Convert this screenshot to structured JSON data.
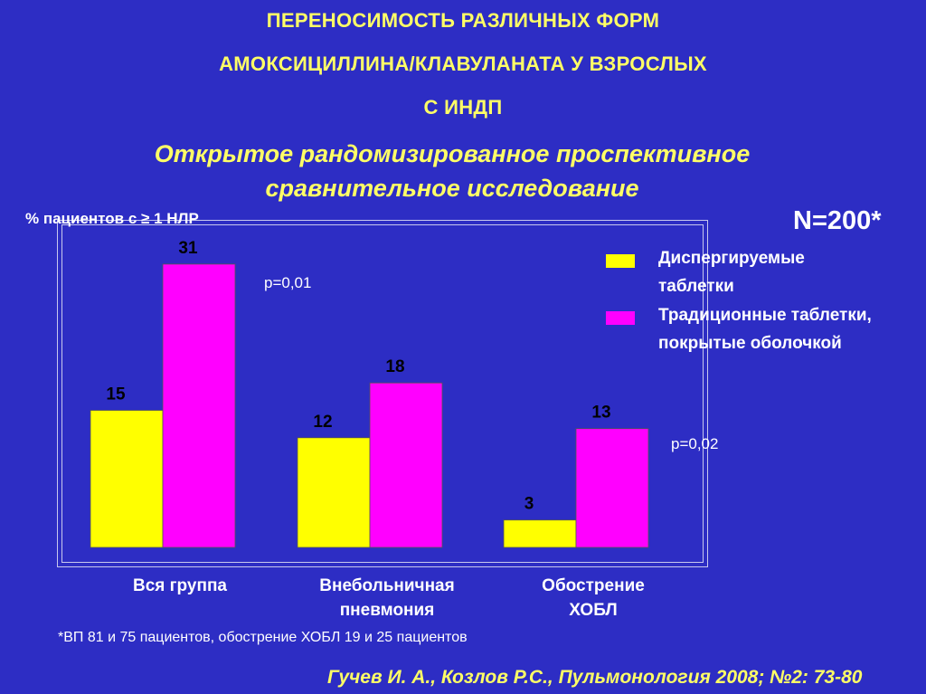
{
  "title_lines": [
    "ПЕРЕНОСИМОСТЬ РАЗЛИЧНЫХ ФОРМ",
    "АМОКСИЦИЛЛИНА/КЛАВУЛАНАТА У ВЗРОСЛЫХ",
    "С ИНДП"
  ],
  "subtitle_lines": [
    "Открытое рандомизированное проспективное",
    "сравнительное исследование"
  ],
  "ylabel": "% пациентов с ≥ 1 НЛР",
  "n_label": "N=200*",
  "legend": [
    {
      "line1": "Диспергируемые",
      "line2": "таблетки"
    },
    {
      "line1": "Традиционные таблетки,",
      "line2": "покрытые оболочкой"
    }
  ],
  "p_values": [
    "p=0,01",
    "p=0,02"
  ],
  "category_labels": [
    {
      "line1": "Вся группа",
      "line2": ""
    },
    {
      "line1": "Внебольничная",
      "line2": "пневмония"
    },
    {
      "line1": "Обострение",
      "line2": "ХОБЛ"
    }
  ],
  "footnote": "*ВП  81 и 75 пациентов, обострение ХОБЛ 19 и 25 пациентов",
  "citation": "Гучев И. А., Козлов Р.С., Пульмонология 2008; №2: 73-80",
  "chart_data": {
    "type": "bar",
    "categories": [
      "Вся группа",
      "Внебольничная пневмония",
      "Обострение ХОБЛ"
    ],
    "series": [
      {
        "name": "Диспергируемые таблетки",
        "values": [
          15,
          12,
          3
        ],
        "color": "#ffff00"
      },
      {
        "name": "Традиционные таблетки, покрытые оболочкой",
        "values": [
          31,
          18,
          13
        ],
        "color": "#ff00ff"
      }
    ],
    "ylabel": "% пациентов с ≥ 1 НЛР",
    "ylim": [
      0,
      31
    ],
    "grid": false,
    "legend": "top-right"
  },
  "colors": {
    "background": "#2d2dc4",
    "title": "#ffff66",
    "series_1": "#ffff00",
    "series_2": "#ff00ff"
  }
}
